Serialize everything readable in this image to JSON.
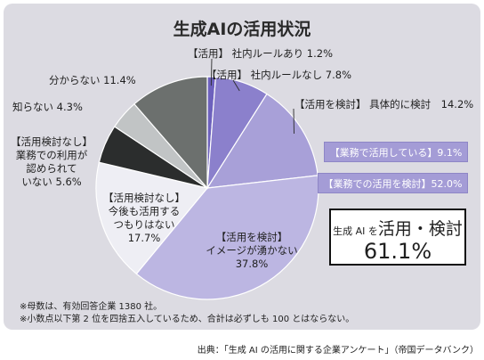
{
  "chart_data": {
    "type": "pie",
    "title": "生成AIの活用状況",
    "unit": "%",
    "slices": [
      {
        "label": "【活用】社内ルールあり",
        "value": 1.2,
        "color": "#6d61bd"
      },
      {
        "label": "【活用】社内ルールなし",
        "value": 7.8,
        "color": "#8b80cc"
      },
      {
        "label": "【活用を検討】具体的に検討",
        "value": 14.2,
        "color": "#a8a0d8"
      },
      {
        "label": "【活用を検討】イメージが湧かない",
        "value": 37.8,
        "color": "#bcb6e2"
      },
      {
        "label": "【活用検討なし】今後も活用するつもりはない",
        "value": 17.7,
        "color": "#eeeef4"
      },
      {
        "label": "【活用検討なし】業務での利用が認められていない",
        "value": 5.6,
        "color": "#2b2d2d"
      },
      {
        "label": "知らない",
        "value": 4.3,
        "color": "#c1c4c5"
      },
      {
        "label": "分からない",
        "value": 11.4,
        "color": "#6c706e"
      }
    ],
    "slice_labels": [
      [
        "【活用】 社内ルールあり 1.2%"
      ],
      [
        "【活用】 社内ルールなし 7.8%"
      ],
      [
        "【活用を検討】 具体的に検討　14.2%"
      ],
      [
        "【活用を検討】",
        "イメージが湧かない",
        "37.8%"
      ],
      [
        "【活用検討なし】",
        "今後も活用する",
        "つもりはない",
        "17.7%"
      ],
      [
        "【活用検討なし】",
        "業務での利用が",
        "認められて",
        "いない 5.6%"
      ],
      [
        "知らない 4.3%"
      ],
      [
        "分からない 11.4%"
      ]
    ],
    "summary": {
      "business_use_label": "【業務で活用している】9.1%",
      "business_consider_label": "【業務での活用を検討】52.0%",
      "line1_prefix": "生成 AI を",
      "line1_main": "活用・検討",
      "value": "61.1%"
    }
  },
  "notes": [
    "※母数は、有効回答企業 1380 社。",
    "※小数点以下第 2 位を四捨五入しているため、合計は必ずしも 100 とはならない。"
  ],
  "source": "出典：「生成 AI の活用に関する企業アンケート」（帝国データバンク）"
}
